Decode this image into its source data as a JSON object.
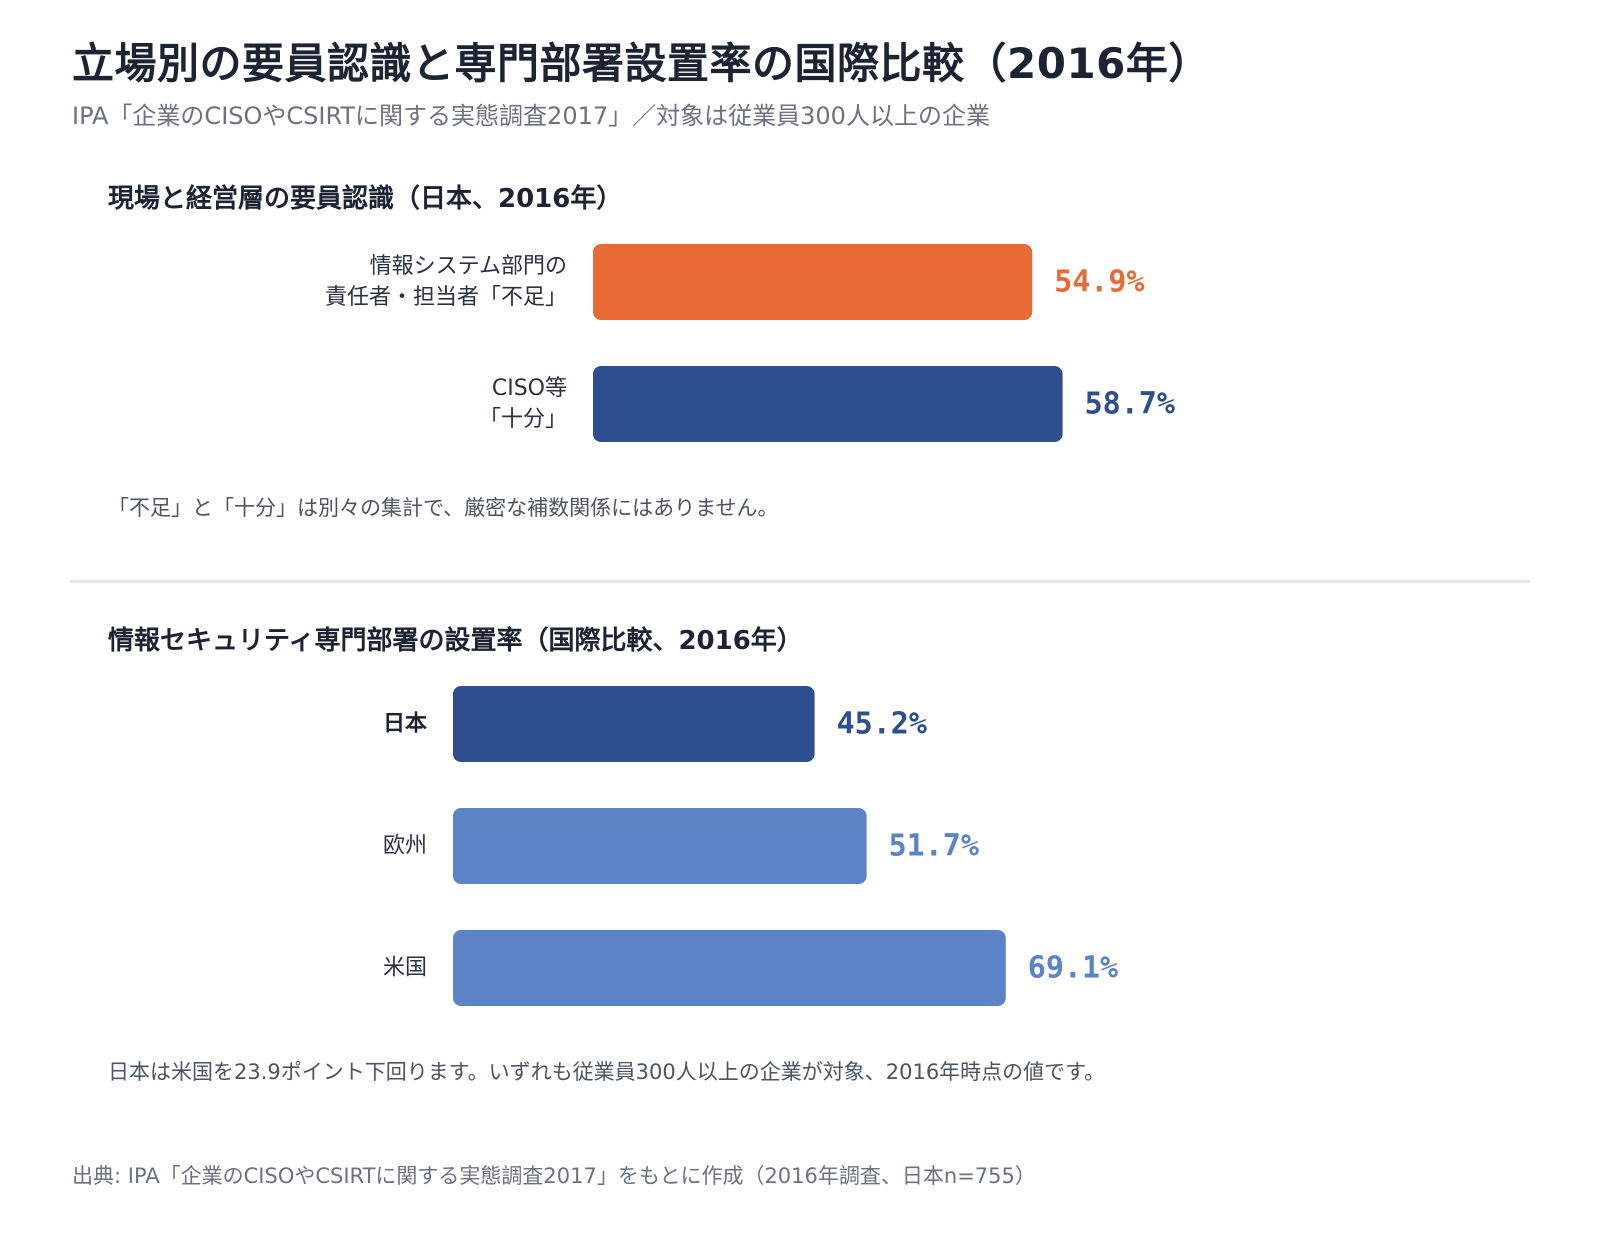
{
  "title": "立場別の要員認識と専門部署設置率の国際比較（2016年）",
  "subtitle": "IPA「企業のCISOやCSIRTに関する実態調査2017」／対象は従業員300人以上の企業",
  "colors": {
    "orange": "#e86a35",
    "navy": "#2e4f8f",
    "light_blue": "#5b83c7"
  },
  "chart_data": [
    {
      "type": "bar",
      "orientation": "horizontal",
      "title": "現場と経営層の要員認識（日本、2016年）",
      "categories": [
        [
          "情報システム部門の",
          "責任者・担当者「不足」"
        ],
        [
          "CISO等",
          "「十分」"
        ]
      ],
      "values": [
        54.9,
        58.7
      ],
      "value_labels": [
        "54.9%",
        "58.7%"
      ],
      "bar_colors": [
        "#e86a35",
        "#2e4f8f"
      ],
      "xlim": [
        0,
        100
      ],
      "note": "「不足」と「十分」は別々の集計で、厳密な補数関係にはありません。"
    },
    {
      "type": "bar",
      "orientation": "horizontal",
      "title": "情報セキュリティ専門部署の設置率（国際比較、2016年）",
      "categories": [
        [
          "日本"
        ],
        [
          "欧州"
        ],
        [
          "米国"
        ]
      ],
      "values": [
        45.2,
        51.7,
        69.1
      ],
      "value_labels": [
        "45.2%",
        "51.7%",
        "69.1%"
      ],
      "bar_colors": [
        "#2e4f8f",
        "#5b83c7",
        "#5b83c7"
      ],
      "highlight_category": "日本",
      "xlim": [
        0,
        100
      ],
      "note": "日本は米国を23.9ポイント下回ります。いずれも従業員300人以上の企業が対象、2016年時点の値です。"
    }
  ],
  "source": "出典: IPA「企業のCISOやCSIRTに関する実態調査2017」をもとに作成（2016年調査、日本n=755）"
}
